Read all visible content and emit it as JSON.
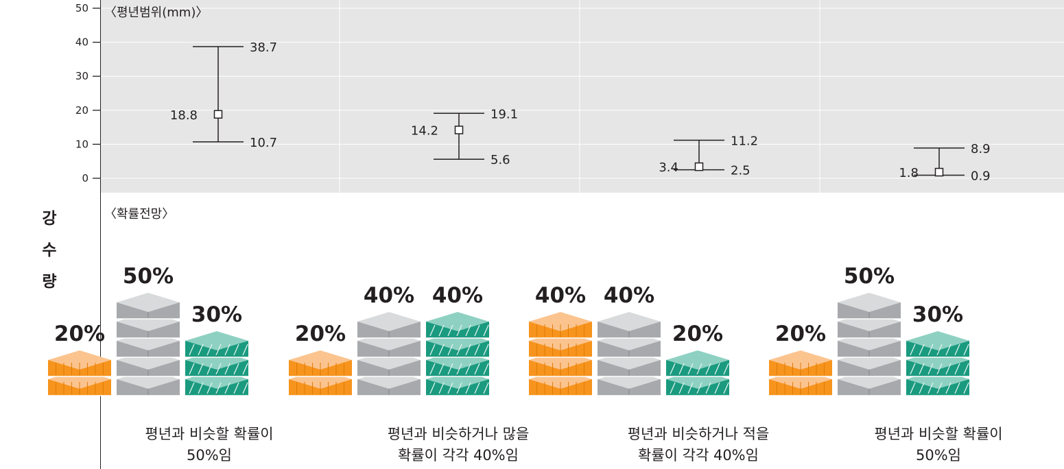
{
  "colors": {
    "panel_bg": "#e6e6e6",
    "below": "#f7941d",
    "similar": "#bcbec0",
    "above": "#5fb7a3",
    "axis": "#231f20"
  },
  "side_label": "강수량",
  "chart_data": [
    {
      "type": "errorbar",
      "title": "〈평년범위(mm)〉",
      "ylim": [
        0,
        50
      ],
      "yticks": [
        0,
        10,
        20,
        30,
        40,
        50
      ],
      "series": [
        {
          "mid": 18.8,
          "low": 10.7,
          "high": 38.7,
          "mid_label": "18.8",
          "low_label": "10.7",
          "high_label": "38.7"
        },
        {
          "mid": 14.2,
          "low": 5.6,
          "high": 19.1,
          "mid_label": "14.2",
          "low_label": "5.6",
          "high_label": "19.1"
        },
        {
          "mid": 3.4,
          "low": 2.5,
          "high": 11.2,
          "mid_label": "3.4",
          "low_label": "2.5",
          "high_label": "11.2"
        },
        {
          "mid": 1.8,
          "low": 0.9,
          "high": 8.9,
          "mid_label": "1.8",
          "low_label": "0.9",
          "high_label": "8.9"
        }
      ]
    },
    {
      "type": "pictogram",
      "title": "〈확률전망〉",
      "groups": [
        {
          "below": 20,
          "similar": 50,
          "above": 30,
          "below_label": "20%",
          "similar_label": "50%",
          "above_label": "30%",
          "caption_line1": "평년과 비슷할 확률이",
          "caption_line2": "50%임"
        },
        {
          "below": 20,
          "similar": 40,
          "above": 40,
          "below_label": "20%",
          "similar_label": "40%",
          "above_label": "40%",
          "caption_line1": "평년과 비슷하거나 많을",
          "caption_line2": "확률이 각각 40%임"
        },
        {
          "below": 40,
          "similar": 40,
          "above": 20,
          "below_label": "40%",
          "similar_label": "40%",
          "above_label": "20%",
          "caption_line1": "평년과 비슷하거나 적을",
          "caption_line2": "확률이 각각 40%임"
        },
        {
          "below": 20,
          "similar": 50,
          "above": 30,
          "below_label": "20%",
          "similar_label": "50%",
          "above_label": "30%",
          "caption_line1": "평년과 비슷할 확률이",
          "caption_line2": "50%임"
        }
      ]
    }
  ]
}
